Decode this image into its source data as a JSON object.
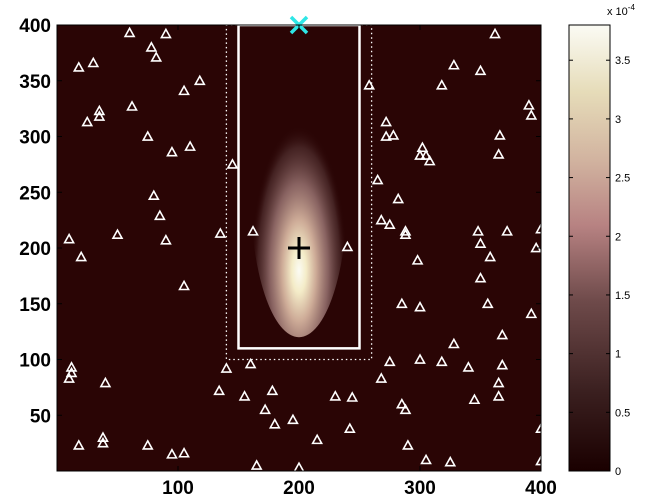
{
  "chart_data": {
    "type": "heatmap",
    "title": "",
    "xlabel": "",
    "ylabel": "",
    "xlim": [
      0,
      400
    ],
    "ylim": [
      0,
      400
    ],
    "x_ticks": [
      100,
      200,
      300,
      400
    ],
    "y_ticks": [
      50,
      100,
      150,
      200,
      250,
      300,
      350,
      400
    ],
    "colorbar": {
      "range": [
        0,
        3.8
      ],
      "ticks": [
        0,
        0.5,
        1,
        1.5,
        2,
        2.5,
        3,
        3.5
      ],
      "tick_labels": [
        "0",
        "0.5",
        "1",
        "1.5",
        "2",
        "2.5",
        "3",
        "3.5"
      ],
      "exponent_label": "x 10",
      "exponent_power": "-4",
      "colormap": "pink",
      "colors": [
        "#1a0000",
        "#3b2020",
        "#6e4a4a",
        "#b78282",
        "#d2b4a0",
        "#e6dcb9",
        "#fbfbf4"
      ]
    },
    "background_color": "#2a0505",
    "density_peak": {
      "x": 200,
      "y": 200
    },
    "density_extent": {
      "x_halfwidth": 40,
      "y_top": 380,
      "y_bottom": 120
    },
    "plus_marker": {
      "x": 200,
      "y": 200,
      "color": "#000000"
    },
    "x_marker": {
      "x": 200,
      "y": 400,
      "color": "#2ee6e6"
    },
    "solid_rectangle": {
      "x": [
        150,
        250
      ],
      "y": [
        110,
        400
      ],
      "color": "#ffffff"
    },
    "dotted_rectangle": {
      "x": [
        140,
        260
      ],
      "y": [
        100,
        400
      ],
      "color": "#ffffff"
    },
    "triangle_color": "#ffffff",
    "triangles": [
      [
        10,
        208
      ],
      [
        18,
        362
      ],
      [
        30,
        366
      ],
      [
        25,
        313
      ],
      [
        35,
        323
      ],
      [
        35,
        318
      ],
      [
        20,
        192
      ],
      [
        50,
        212
      ],
      [
        60,
        393
      ],
      [
        62,
        327
      ],
      [
        78,
        380
      ],
      [
        90,
        392
      ],
      [
        82,
        371
      ],
      [
        75,
        300
      ],
      [
        80,
        247
      ],
      [
        85,
        229
      ],
      [
        90,
        207
      ],
      [
        95,
        286
      ],
      [
        110,
        291
      ],
      [
        118,
        350
      ],
      [
        105,
        341
      ],
      [
        105,
        166
      ],
      [
        135,
        213
      ],
      [
        145,
        275
      ],
      [
        162,
        215
      ],
      [
        240,
        201
      ],
      [
        258,
        346
      ],
      [
        265,
        261
      ],
      [
        268,
        225
      ],
      [
        272,
        313
      ],
      [
        272,
        300
      ],
      [
        278,
        301
      ],
      [
        275,
        221
      ],
      [
        282,
        244
      ],
      [
        288,
        215
      ],
      [
        288,
        212
      ],
      [
        298,
        189
      ],
      [
        300,
        283
      ],
      [
        302,
        290
      ],
      [
        305,
        283
      ],
      [
        308,
        278
      ],
      [
        318,
        346
      ],
      [
        328,
        364
      ],
      [
        350,
        359
      ],
      [
        362,
        392
      ],
      [
        366,
        301
      ],
      [
        365,
        284
      ],
      [
        348,
        215
      ],
      [
        350,
        204
      ],
      [
        350,
        173
      ],
      [
        356,
        150
      ],
      [
        372,
        215
      ],
      [
        390,
        328
      ],
      [
        392,
        319
      ],
      [
        396,
        200
      ],
      [
        400,
        217
      ],
      [
        392,
        141
      ],
      [
        358,
        192
      ],
      [
        285,
        150
      ],
      [
        300,
        147
      ],
      [
        10,
        83
      ],
      [
        12,
        93
      ],
      [
        12,
        88
      ],
      [
        40,
        79
      ],
      [
        18,
        23
      ],
      [
        38,
        30
      ],
      [
        38,
        25
      ],
      [
        75,
        23
      ],
      [
        95,
        15
      ],
      [
        105,
        16
      ],
      [
        134,
        72
      ],
      [
        140,
        92
      ],
      [
        155,
        67
      ],
      [
        160,
        96
      ],
      [
        165,
        5
      ],
      [
        172,
        55
      ],
      [
        178,
        72
      ],
      [
        180,
        42
      ],
      [
        195,
        46
      ],
      [
        200,
        3
      ],
      [
        215,
        28
      ],
      [
        230,
        67
      ],
      [
        244,
        66
      ],
      [
        242,
        38
      ],
      [
        268,
        83
      ],
      [
        275,
        98
      ],
      [
        285,
        60
      ],
      [
        288,
        55
      ],
      [
        290,
        23
      ],
      [
        300,
        100
      ],
      [
        305,
        10
      ],
      [
        325,
        8
      ],
      [
        328,
        114
      ],
      [
        340,
        93
      ],
      [
        345,
        64
      ],
      [
        365,
        67
      ],
      [
        365,
        79
      ],
      [
        368,
        122
      ],
      [
        400,
        38
      ],
      [
        400,
        9
      ],
      [
        368,
        95
      ],
      [
        318,
        98
      ]
    ]
  }
}
